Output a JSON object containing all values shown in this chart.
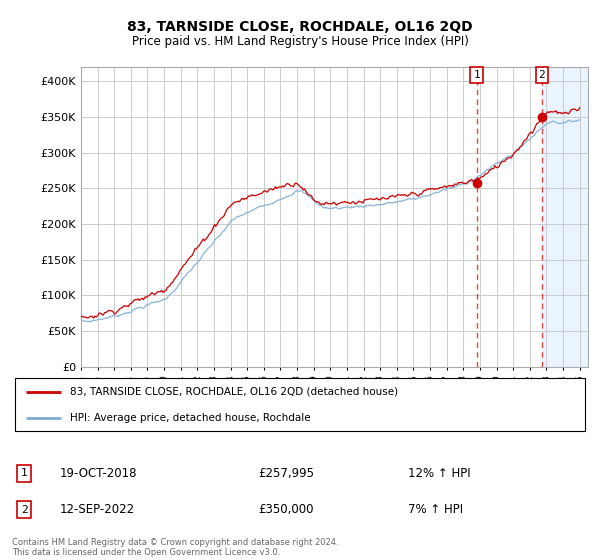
{
  "title": "83, TARNSIDE CLOSE, ROCHDALE, OL16 2QD",
  "subtitle": "Price paid vs. HM Land Registry's House Price Index (HPI)",
  "ylim": [
    0,
    420000
  ],
  "yticks": [
    0,
    50000,
    100000,
    150000,
    200000,
    250000,
    300000,
    350000,
    400000
  ],
  "xlim_start": 1995.0,
  "xlim_end": 2025.5,
  "hpi_color": "#7aadd4",
  "price_color": "#cc0000",
  "sale1_x": 2018.8,
  "sale1_price": 257995,
  "sale2_x": 2022.72,
  "sale2_price": 350000,
  "legend_line1": "83, TARNSIDE CLOSE, ROCHDALE, OL16 2QD (detached house)",
  "legend_line2": "HPI: Average price, detached house, Rochdale",
  "table_row1_num": "1",
  "table_row1_date": "19-OCT-2018",
  "table_row1_price": "£257,995",
  "table_row1_hpi": "12% ↑ HPI",
  "table_row2_num": "2",
  "table_row2_date": "12-SEP-2022",
  "table_row2_price": "£350,000",
  "table_row2_hpi": "7% ↑ HPI",
  "footnote": "Contains HM Land Registry data © Crown copyright and database right 2024.\nThis data is licensed under the Open Government Licence v3.0.",
  "background_color": "#ffffff",
  "plot_bg_color": "#ffffff",
  "grid_color": "#cccccc",
  "shade_color": "#ddeeff"
}
